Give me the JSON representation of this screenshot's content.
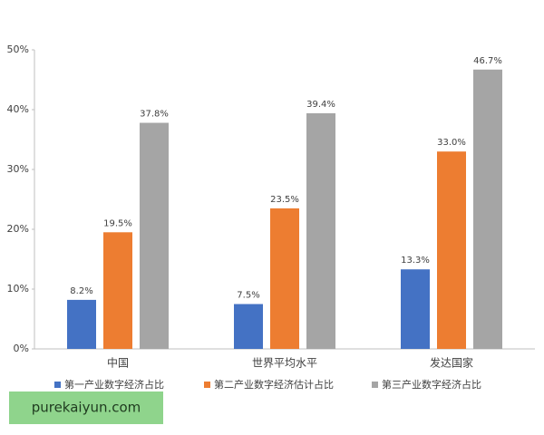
{
  "chart_data": {
    "type": "bar",
    "categories": [
      "中国",
      "世界平均水平",
      "发达国家"
    ],
    "series": [
      {
        "name": "第一产业数字经济占比",
        "color": "#4472c4",
        "values": [
          8.2,
          7.5,
          13.3
        ],
        "value_labels": [
          "8.2%",
          "7.5%",
          "13.3%"
        ]
      },
      {
        "name": "第二产业数字经济估计占比",
        "color": "#ed7d31",
        "values": [
          19.5,
          23.5,
          33.0
        ],
        "value_labels": [
          "19.5%",
          "23.5%",
          "33.0%"
        ]
      },
      {
        "name": "第三产业数字经济占比",
        "color": "#a5a5a5",
        "values": [
          37.8,
          39.4,
          46.7
        ],
        "value_labels": [
          "37.8%",
          "39.4%",
          "46.7%"
        ]
      }
    ],
    "ylim": [
      0,
      50
    ],
    "yticks": [
      {
        "value": 0,
        "label": "0%"
      },
      {
        "value": 10,
        "label": "10%"
      },
      {
        "value": 20,
        "label": "20%"
      },
      {
        "value": 30,
        "label": "30%"
      },
      {
        "value": 40,
        "label": "40%"
      },
      {
        "value": 50,
        "label": "50%"
      }
    ],
    "grid": false,
    "legend": "bottom"
  },
  "watermark": "purekaiyun.com"
}
